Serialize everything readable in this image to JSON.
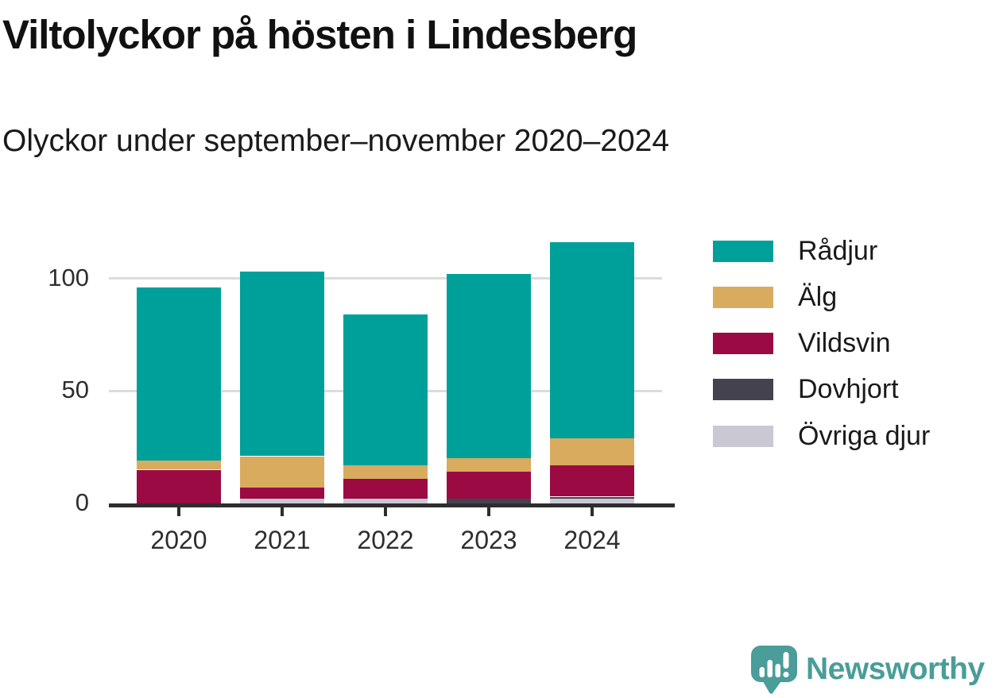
{
  "chart_data": {
    "type": "bar",
    "stacked": true,
    "title": "Viltolyckor på hösten i Lindesberg",
    "subtitle": "Olyckor under september–november 2020–2024",
    "categories": [
      "2020",
      "2021",
      "2022",
      "2023",
      "2024"
    ],
    "series": [
      {
        "name": "Rådjur",
        "color": "#00a09a",
        "values": [
          77,
          82,
          67,
          82,
          87
        ]
      },
      {
        "name": "Älg",
        "color": "#d9ab5e",
        "values": [
          4,
          14,
          6,
          6,
          12
        ]
      },
      {
        "name": "Vildsvin",
        "color": "#9b0a43",
        "values": [
          15,
          5,
          9,
          12,
          14
        ]
      },
      {
        "name": "Dovhjort",
        "color": "#454250",
        "values": [
          0,
          0,
          0,
          2,
          1
        ]
      },
      {
        "name": "Övriga djur",
        "color": "#c9c8d3",
        "values": [
          0,
          2,
          2,
          0,
          2
        ]
      }
    ],
    "totals": [
      96,
      103,
      84,
      102,
      116
    ],
    "y_ticks": [
      0,
      50,
      100
    ],
    "ylim": [
      0,
      120
    ],
    "grid": "horizontal-gridlines-at-50-and-100",
    "legend_position": "right",
    "legend_order": [
      "Rådjur",
      "Älg",
      "Vildsvin",
      "Dovhjort",
      "Övriga djur"
    ]
  },
  "footer": {
    "brand": "Newsworthy",
    "brand_color": "#4a9d98",
    "logo_icon": "newsworthy-speech-bubble-bar-chart-icon"
  }
}
